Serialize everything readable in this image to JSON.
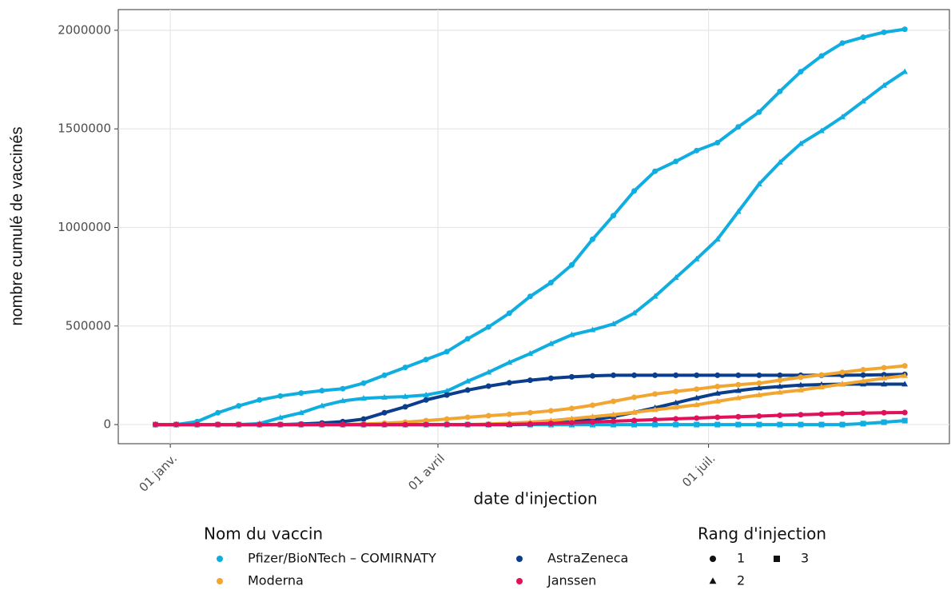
{
  "chart_data": {
    "type": "line",
    "y_label": "nombre cumulé de vaccinés",
    "x_label": "date d'injection",
    "x": [
      -5,
      2,
      9,
      16,
      23,
      30,
      37,
      44,
      51,
      58,
      65,
      72,
      79,
      86,
      93,
      100,
      107,
      114,
      121,
      128,
      135,
      142,
      149,
      156,
      163,
      170,
      177,
      184,
      191,
      198,
      205,
      212,
      219,
      226,
      233,
      240,
      247
    ],
    "xlim": [
      -17.5,
      262
    ],
    "xticks": [
      {
        "value": 0,
        "label": "01 janv."
      },
      {
        "value": 90,
        "label": "01 avril"
      },
      {
        "value": 181,
        "label": "01 juil."
      }
    ],
    "ylim": [
      -97000,
      2105000
    ],
    "yticks": [
      0,
      500000,
      1000000,
      1500000,
      2000000
    ],
    "grid": true,
    "series": [
      {
        "color": "#10aee0",
        "shape": "circle",
        "values": [
          0,
          0,
          15000,
          60000,
          95000,
          125000,
          145000,
          160000,
          172000,
          182000,
          210000,
          250000,
          290000,
          330000,
          370000,
          435000,
          495000,
          565000,
          650000,
          720000,
          810000,
          940000,
          1060000,
          1185000,
          1285000,
          1335000,
          1390000,
          1430000,
          1510000,
          1585000,
          1690000,
          1790000,
          1870000,
          1935000,
          1965000,
          1990000,
          2005000
        ]
      },
      {
        "color": "#10aee0",
        "shape": "triangle",
        "values": [
          0,
          0,
          0,
          0,
          0,
          5000,
          35000,
          60000,
          95000,
          120000,
          133000,
          138000,
          142000,
          150000,
          170000,
          220000,
          265000,
          315000,
          360000,
          410000,
          455000,
          480000,
          510000,
          565000,
          650000,
          745000,
          840000,
          940000,
          1080000,
          1220000,
          1330000,
          1425000,
          1490000,
          1560000,
          1640000,
          1720000,
          1790000
        ]
      },
      {
        "color": "#10aee0",
        "shape": "square",
        "values": [
          0,
          0,
          0,
          0,
          0,
          0,
          0,
          0,
          0,
          0,
          0,
          0,
          0,
          0,
          0,
          0,
          0,
          0,
          0,
          0,
          0,
          0,
          0,
          0,
          0,
          0,
          0,
          0,
          0,
          0,
          0,
          0,
          0,
          0,
          5000,
          12000,
          20000
        ]
      },
      {
        "color": "#0a3d8c",
        "shape": "circle",
        "values": [
          0,
          0,
          0,
          0,
          0,
          0,
          0,
          3000,
          8000,
          15000,
          28000,
          60000,
          90000,
          125000,
          150000,
          175000,
          195000,
          212000,
          225000,
          235000,
          242000,
          247000,
          250000,
          250000,
          250000,
          250000,
          250000,
          250000,
          250000,
          250000,
          250000,
          250000,
          250000,
          250000,
          251000,
          253000,
          255000
        ]
      },
      {
        "color": "#0a3d8c",
        "shape": "triangle",
        "values": [
          0,
          0,
          0,
          0,
          0,
          0,
          0,
          0,
          0,
          0,
          0,
          0,
          0,
          0,
          0,
          0,
          0,
          0,
          3000,
          8000,
          15000,
          25000,
          40000,
          62000,
          85000,
          110000,
          135000,
          158000,
          172000,
          185000,
          193000,
          200000,
          203000,
          205000,
          205000,
          205000,
          205000
        ]
      },
      {
        "color": "#f2a632",
        "shape": "circle",
        "values": [
          0,
          0,
          0,
          0,
          0,
          0,
          0,
          0,
          0,
          0,
          3000,
          7000,
          12000,
          20000,
          28000,
          37000,
          45000,
          52000,
          60000,
          70000,
          82000,
          98000,
          118000,
          138000,
          155000,
          168000,
          180000,
          193000,
          202000,
          210000,
          225000,
          240000,
          252000,
          265000,
          278000,
          288000,
          298000
        ]
      },
      {
        "color": "#f2a632",
        "shape": "triangle",
        "values": [
          0,
          0,
          0,
          0,
          0,
          0,
          0,
          0,
          0,
          0,
          0,
          0,
          0,
          0,
          0,
          0,
          3000,
          7000,
          12000,
          20000,
          30000,
          40000,
          50000,
          62000,
          75000,
          87000,
          100000,
          118000,
          135000,
          150000,
          163000,
          175000,
          190000,
          205000,
          220000,
          235000,
          248000
        ]
      },
      {
        "color": "#e0105a",
        "shape": "circle",
        "values": [
          0,
          0,
          0,
          0,
          0,
          0,
          0,
          0,
          0,
          0,
          0,
          0,
          0,
          0,
          0,
          0,
          0,
          1000,
          3000,
          6000,
          9000,
          13000,
          17000,
          21000,
          25000,
          29000,
          33000,
          37000,
          40000,
          43000,
          47000,
          50000,
          53000,
          56000,
          58000,
          60000,
          61000
        ]
      }
    ],
    "legend": {
      "color_title": "Nom du vaccin",
      "color_items": [
        {
          "name": "Pfizer/BioNTech – COMIRNATY",
          "color": "#10aee0"
        },
        {
          "name": "Moderna",
          "color": "#f2a632"
        },
        {
          "name": "AstraZeneca",
          "color": "#0a3d8c"
        },
        {
          "name": "Janssen",
          "color": "#e0105a"
        }
      ],
      "shape_title": "Rang d'injection",
      "shape_items": [
        {
          "name": "1",
          "shape": "circle"
        },
        {
          "name": "2",
          "shape": "triangle"
        },
        {
          "name": "3",
          "shape": "square"
        }
      ]
    }
  }
}
